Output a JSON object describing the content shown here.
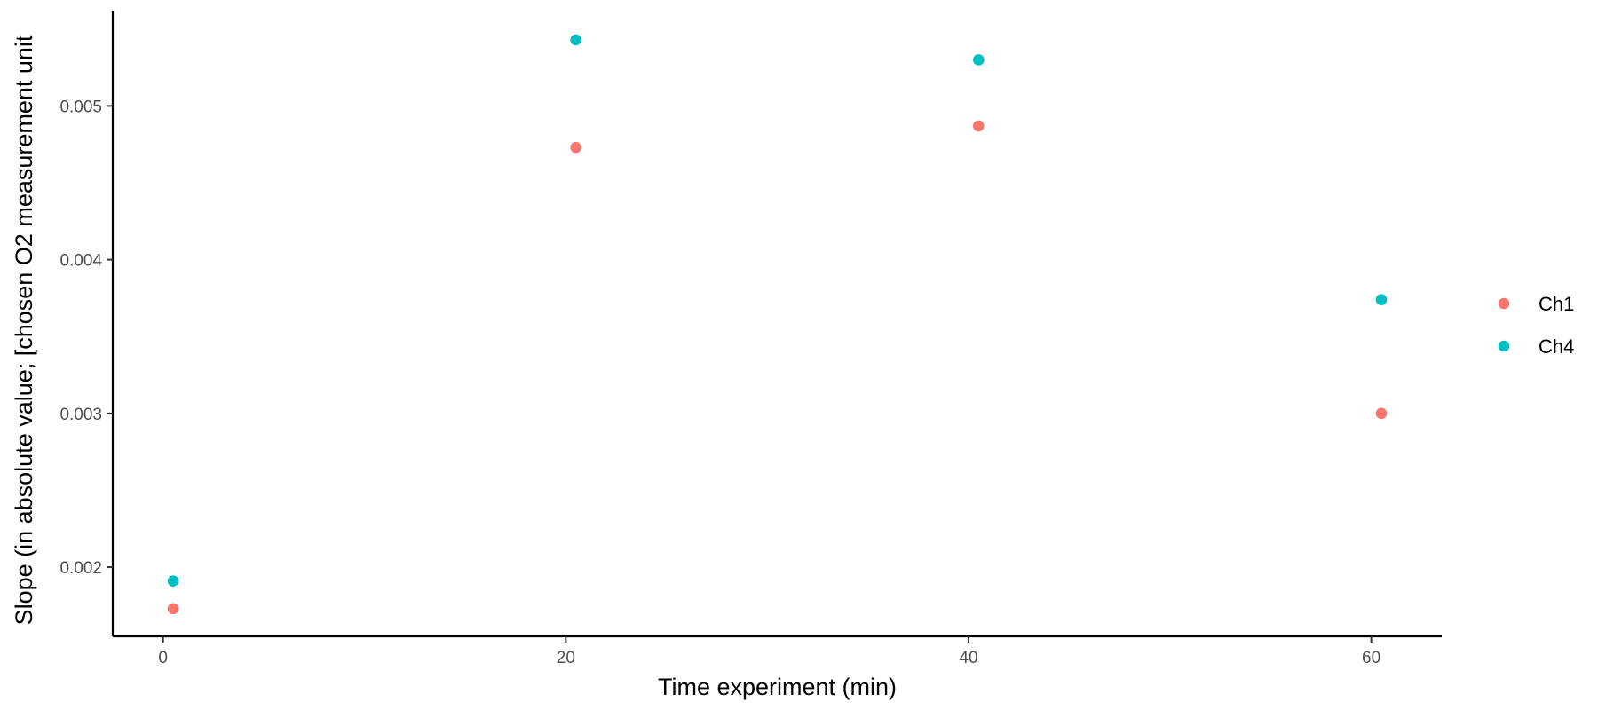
{
  "chart_data": {
    "type": "scatter",
    "title": "",
    "xlabel": "Time experiment (min)",
    "ylabel": "Slope (in absolute value; [chosen O2 measurement unit",
    "xlim": [
      -2.5,
      63.5
    ],
    "ylim": [
      0.00155,
      0.00562
    ],
    "x_ticks": [
      0,
      20,
      40,
      60
    ],
    "y_ticks": [
      0.002,
      0.003,
      0.004,
      0.005
    ],
    "x_tick_labels": [
      "0",
      "20",
      "40",
      "60"
    ],
    "y_tick_labels": [
      "0.002",
      "0.003",
      "0.004",
      "0.005"
    ],
    "legend_position": "right",
    "grid": false,
    "series": [
      {
        "name": "Ch1",
        "color": "#F8766D",
        "points": [
          {
            "x": 0.5,
            "y": 0.00173
          },
          {
            "x": 20.5,
            "y": 0.00473
          },
          {
            "x": 40.5,
            "y": 0.00487
          },
          {
            "x": 60.5,
            "y": 0.003
          }
        ]
      },
      {
        "name": "Ch4",
        "color": "#00BFC4",
        "points": [
          {
            "x": 0.5,
            "y": 0.00191
          },
          {
            "x": 20.5,
            "y": 0.00543
          },
          {
            "x": 40.5,
            "y": 0.0053
          },
          {
            "x": 60.5,
            "y": 0.00374
          }
        ]
      }
    ]
  }
}
